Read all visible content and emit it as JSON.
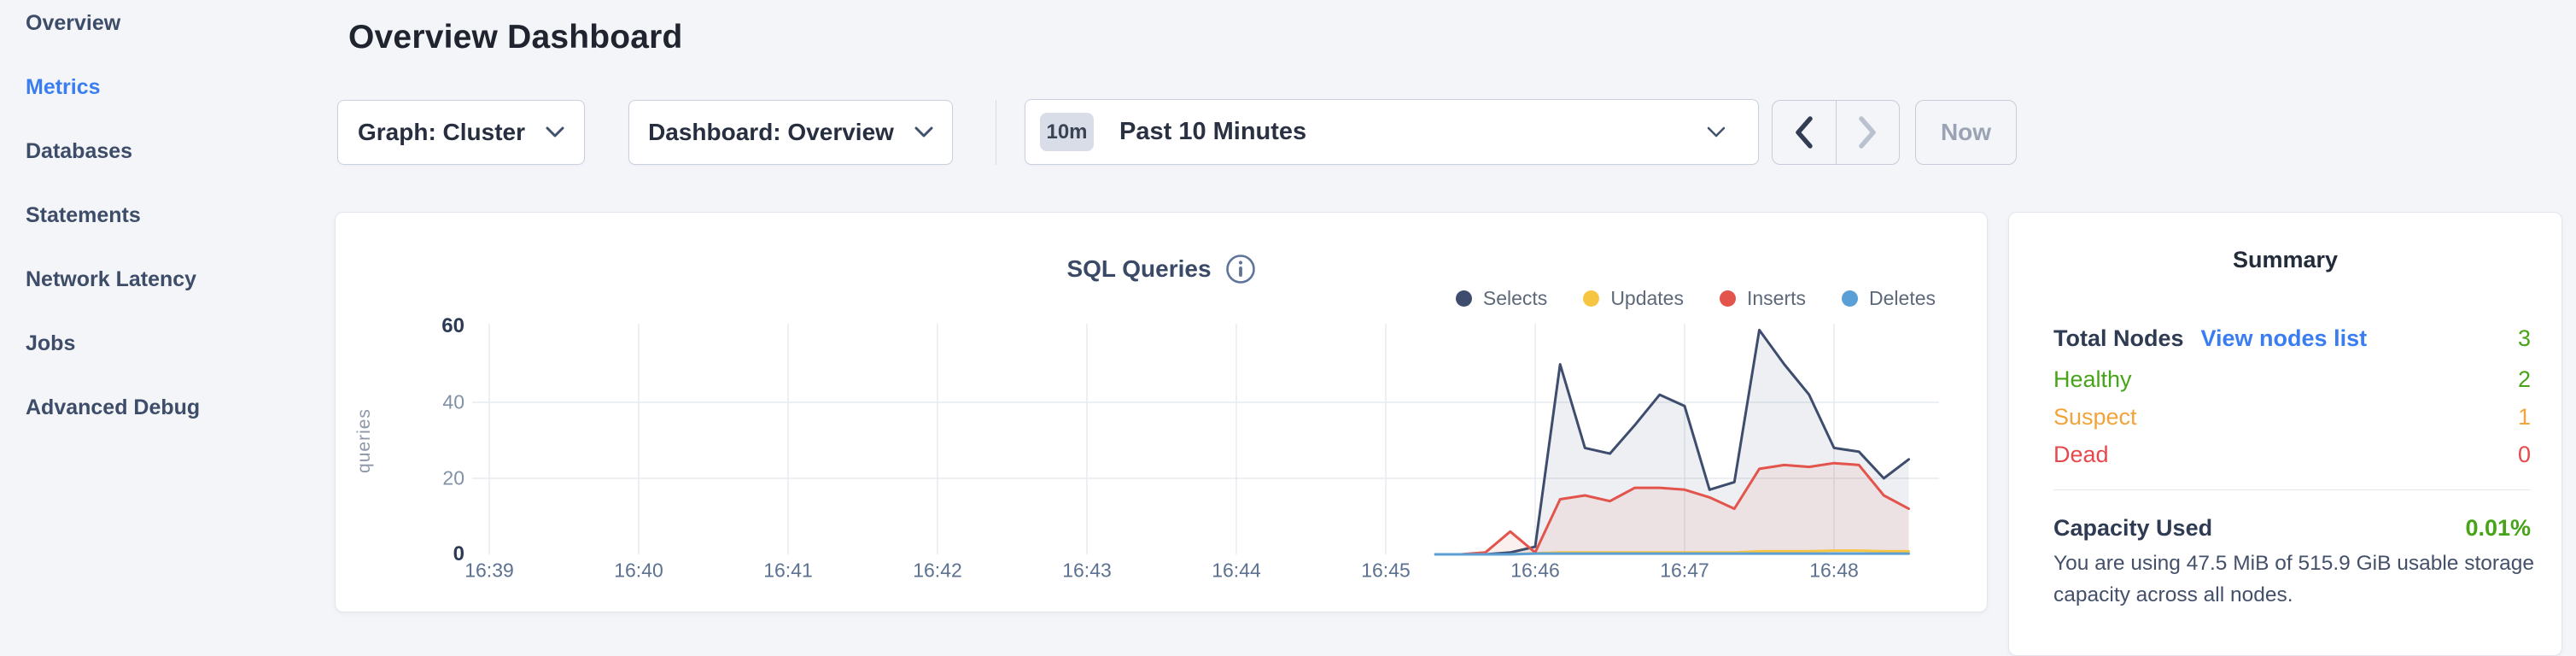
{
  "colors": {
    "background": "#f4f5f9",
    "accent_blue": "#3a7df0",
    "healthy_green": "#47a317",
    "suspect_orange": "#f2a43a",
    "dead_red": "#e5484d",
    "series_selects": "#3e4d6d",
    "series_updates": "#f6c643",
    "series_inserts": "#e2544c",
    "series_deletes": "#5a9fd6",
    "gridline": "#e6eaf0"
  },
  "sidebar": {
    "items": [
      {
        "label": "Overview",
        "active": false
      },
      {
        "label": "Metrics",
        "active": true
      },
      {
        "label": "Databases",
        "active": false
      },
      {
        "label": "Statements",
        "active": false
      },
      {
        "label": "Network Latency",
        "active": false
      },
      {
        "label": "Jobs",
        "active": false
      },
      {
        "label": "Advanced Debug",
        "active": false
      }
    ]
  },
  "page": {
    "title": "Overview Dashboard"
  },
  "toolbar": {
    "graph_dropdown_label": "Graph: Cluster",
    "dashboard_dropdown_label": "Dashboard: Overview",
    "time_badge": "10m",
    "time_label": "Past 10 Minutes",
    "now_label": "Now"
  },
  "chart_data": {
    "type": "area",
    "title": "SQL Queries",
    "ylabel": "queries",
    "ylim": [
      0,
      60
    ],
    "yticks": [
      0,
      20,
      40,
      60
    ],
    "grid": true,
    "legend_position": "top-right",
    "xticks": [
      "16:39",
      "16:40",
      "16:41",
      "16:42",
      "16:43",
      "16:44",
      "16:45",
      "16:46",
      "16:47",
      "16:48"
    ],
    "x_start": "16:45:20",
    "x_start_offset_sec": 380,
    "x_step_sec": 10,
    "series": [
      {
        "name": "Selects",
        "color": "#3e4d6d",
        "fill": true,
        "values": [
          0,
          0,
          0,
          0.5,
          2,
          50,
          28,
          26.5,
          34,
          42,
          39,
          17,
          19,
          59,
          50,
          42,
          28,
          27,
          20,
          25
        ]
      },
      {
        "name": "Updates",
        "color": "#f6c643",
        "fill": false,
        "values": [
          0,
          0,
          0,
          0,
          0.3,
          0.5,
          0.5,
          0.5,
          0.5,
          0.5,
          0.5,
          0.5,
          0.5,
          0.8,
          0.8,
          0.8,
          1,
          1,
          0.8,
          0.8
        ]
      },
      {
        "name": "Inserts",
        "color": "#e2544c",
        "fill": true,
        "values": [
          0,
          0,
          0.5,
          6,
          0.5,
          14.5,
          15.5,
          14,
          17.5,
          17.5,
          17,
          15,
          12,
          22.5,
          23.5,
          23,
          24,
          23.5,
          15.5,
          12
        ]
      },
      {
        "name": "Deletes",
        "color": "#5a9fd6",
        "fill": false,
        "values": [
          0,
          0,
          0,
          0,
          0.2,
          0.2,
          0.2,
          0.2,
          0.2,
          0.2,
          0.2,
          0.2,
          0.2,
          0.2,
          0.2,
          0.2,
          0.2,
          0.2,
          0.2,
          0.2
        ]
      }
    ]
  },
  "summary": {
    "title": "Summary",
    "total_nodes_label": "Total Nodes",
    "view_link": "View nodes list",
    "total_value": "3",
    "total_value_color": "#47a317",
    "node_rows": [
      {
        "label": "Healthy",
        "value": "2",
        "color": "#47a317"
      },
      {
        "label": "Suspect",
        "value": "1",
        "color": "#f2a43a"
      },
      {
        "label": "Dead",
        "value": "0",
        "color": "#e5484d"
      }
    ],
    "capacity_label": "Capacity Used",
    "capacity_value": "0.01%",
    "capacity_value_color": "#47a317",
    "capacity_description": "You are using 47.5 MiB of 515.9 GiB usable storage capacity across all nodes."
  }
}
